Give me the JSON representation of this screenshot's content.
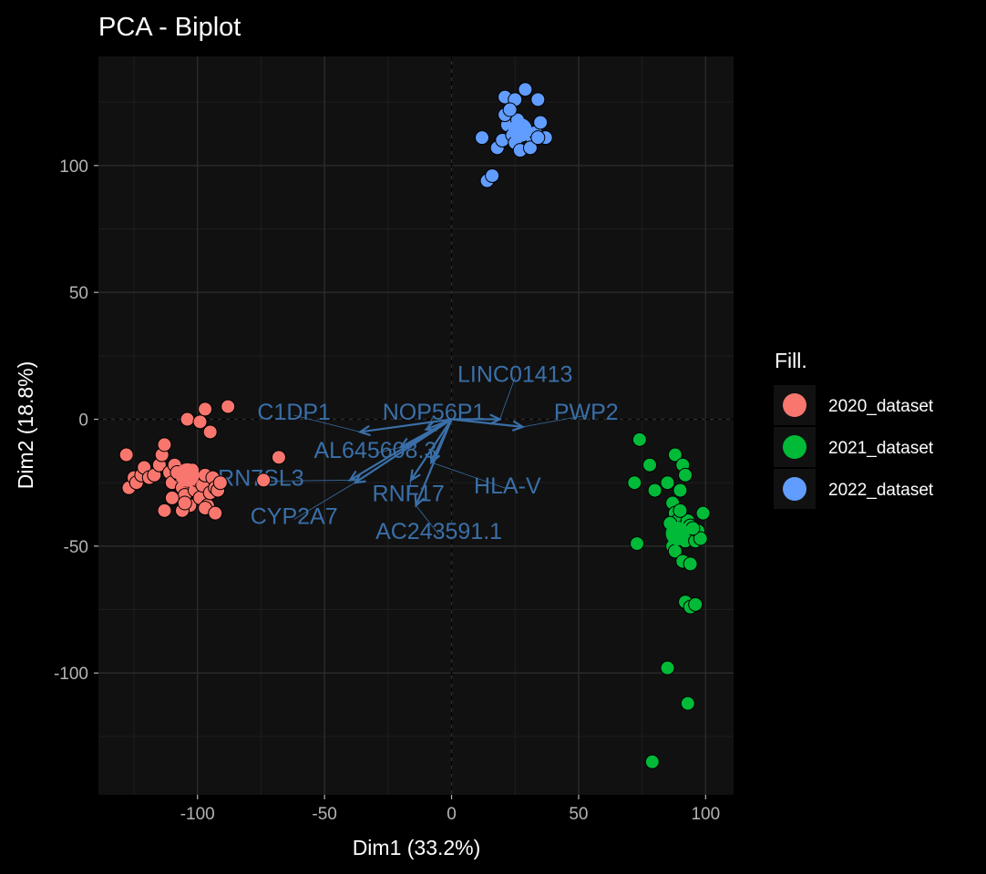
{
  "chart_data": {
    "type": "scatter",
    "title": "PCA - Biplot",
    "xlabel": "Dim1 (33.2%)",
    "ylabel": "Dim2 (18.8%)",
    "xlim": [
      -139,
      111
    ],
    "ylim": [
      -148,
      143
    ],
    "x_ticks": [
      -100,
      -50,
      0,
      50,
      100
    ],
    "y_ticks": [
      -100,
      -50,
      0,
      50,
      100
    ],
    "grid": true,
    "legend": {
      "title": "Fill.",
      "position": "right"
    },
    "series": [
      {
        "name": "2020_dataset",
        "color": "#F8766D",
        "centroid": [
          -104,
          -22
        ],
        "points": [
          [
            -104,
            0
          ],
          [
            -99,
            -1
          ],
          [
            -97,
            4
          ],
          [
            -95,
            -5
          ],
          [
            -88,
            5
          ],
          [
            -128,
            -14
          ],
          [
            -127,
            -27
          ],
          [
            -125,
            -23
          ],
          [
            -124,
            -25
          ],
          [
            -122,
            -22
          ],
          [
            -121,
            -19
          ],
          [
            -119,
            -23
          ],
          [
            -117,
            -22
          ],
          [
            -115,
            -18
          ],
          [
            -114,
            -14
          ],
          [
            -113,
            -10
          ],
          [
            -111,
            -21
          ],
          [
            -110,
            -25
          ],
          [
            -109,
            -18
          ],
          [
            -107,
            -22
          ],
          [
            -106,
            -27
          ],
          [
            -105,
            -30
          ],
          [
            -104,
            -24
          ],
          [
            -103,
            -34
          ],
          [
            -102,
            -20
          ],
          [
            -101,
            -28
          ],
          [
            -100,
            -24
          ],
          [
            -99,
            -31
          ],
          [
            -98,
            -26
          ],
          [
            -97,
            -22
          ],
          [
            -96,
            -34
          ],
          [
            -95,
            -29
          ],
          [
            -94,
            -23
          ],
          [
            -93,
            -27
          ],
          [
            -92,
            -28
          ],
          [
            -97,
            -35
          ],
          [
            -93,
            -37
          ],
          [
            -106,
            -36
          ],
          [
            -105,
            -33
          ],
          [
            -113,
            -36
          ],
          [
            -108,
            -21
          ],
          [
            -110,
            -31
          ],
          [
            -91,
            -25
          ],
          [
            -68,
            -15
          ],
          [
            -74,
            -24
          ]
        ]
      },
      {
        "name": "2021_dataset",
        "color": "#00BA38",
        "centroid": [
          89,
          -45
        ],
        "points": [
          [
            74,
            -8
          ],
          [
            72,
            -25
          ],
          [
            78,
            -18
          ],
          [
            80,
            -28
          ],
          [
            85,
            -25
          ],
          [
            88,
            -14
          ],
          [
            91,
            -18
          ],
          [
            92,
            -22
          ],
          [
            90,
            -28
          ],
          [
            87,
            -33
          ],
          [
            88,
            -37
          ],
          [
            89,
            -40
          ],
          [
            90,
            -43
          ],
          [
            91,
            -45
          ],
          [
            92,
            -48
          ],
          [
            93,
            -40
          ],
          [
            94,
            -42
          ],
          [
            95,
            -45
          ],
          [
            96,
            -48
          ],
          [
            97,
            -44
          ],
          [
            98,
            -47
          ],
          [
            99,
            -37
          ],
          [
            86,
            -41
          ],
          [
            87,
            -50
          ],
          [
            88,
            -52
          ],
          [
            91,
            -56
          ],
          [
            94,
            -57
          ],
          [
            73,
            -49
          ],
          [
            92,
            -72
          ],
          [
            94,
            -74
          ],
          [
            96,
            -73
          ],
          [
            85,
            -98
          ],
          [
            93,
            -112
          ],
          [
            79,
            -135
          ],
          [
            90,
            -36
          ],
          [
            95,
            -43
          ]
        ]
      },
      {
        "name": "2022_dataset",
        "color": "#619CFF",
        "centroid": [
          27,
          114
        ],
        "points": [
          [
            21,
            127
          ],
          [
            25,
            126
          ],
          [
            29,
            130
          ],
          [
            34,
            126
          ],
          [
            12,
            111
          ],
          [
            18,
            107
          ],
          [
            20,
            110
          ],
          [
            22,
            116
          ],
          [
            24,
            112
          ],
          [
            26,
            118
          ],
          [
            28,
            115
          ],
          [
            30,
            112
          ],
          [
            32,
            110
          ],
          [
            33,
            113
          ],
          [
            35,
            117
          ],
          [
            37,
            111
          ],
          [
            14,
            94
          ],
          [
            16,
            96
          ],
          [
            21,
            120
          ],
          [
            25,
            109
          ],
          [
            27,
            106
          ],
          [
            31,
            107
          ],
          [
            34,
            111
          ],
          [
            23,
            122
          ]
        ]
      }
    ],
    "variables": [
      {
        "name": "C1DP1",
        "end": [
          -36,
          -5
        ],
        "label": [
          -62,
          3
        ]
      },
      {
        "name": "NOP56P1",
        "end": [
          -10,
          -4
        ],
        "label": [
          -7,
          3
        ]
      },
      {
        "name": "LINC01413",
        "end": [
          19,
          0
        ],
        "label": [
          25,
          18
        ]
      },
      {
        "name": "PWP2",
        "end": [
          28,
          -3
        ],
        "label": [
          53,
          3
        ]
      },
      {
        "name": "AL645608.3",
        "end": [
          -20,
          -11
        ],
        "label": [
          -30,
          -12
        ]
      },
      {
        "name": "RN7SL3",
        "end": [
          -40,
          -24
        ],
        "label": [
          -75,
          -23
        ]
      },
      {
        "name": "HLA-V",
        "end": [
          -8,
          -17
        ],
        "label": [
          22,
          -26
        ]
      },
      {
        "name": "RNF17",
        "end": [
          -16,
          -24
        ],
        "label": [
          -17,
          -29
        ]
      },
      {
        "name": "CYP2A7",
        "end": [
          -38,
          -25
        ],
        "label": [
          -62,
          -38
        ]
      },
      {
        "name": "AC243591.1",
        "end": [
          -14,
          -34
        ],
        "label": [
          -5,
          -44
        ]
      }
    ]
  }
}
